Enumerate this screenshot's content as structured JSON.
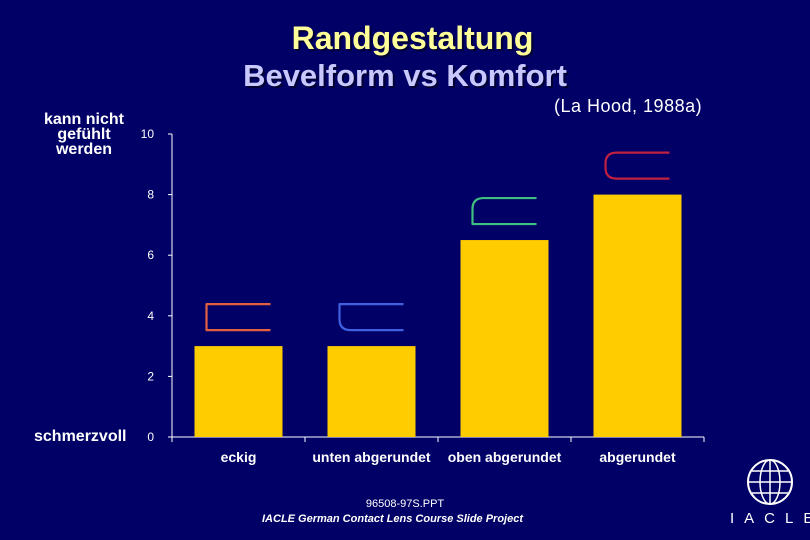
{
  "header": {
    "title": "Randgestaltung",
    "subtitle": "Bevelform vs Komfort",
    "citation": "(La Hood, 1988a)"
  },
  "side_labels": {
    "top": "kann nicht gefühlt werden",
    "bottom": "schmerzvoll"
  },
  "footer": {
    "file": "96508-97S.PPT",
    "project": "IACLE German Contact Lens Course Slide Project",
    "logo_text": "IACLE"
  },
  "colors": {
    "background": "#000066",
    "bar": "#FFCC00",
    "axis": "#FFFFFF",
    "title": "#FFFF99",
    "subtitle": "#C8C8FF"
  },
  "chart_data": {
    "type": "bar",
    "title": "Randgestaltung",
    "subtitle": "Bevelform vs Komfort",
    "categories": [
      "eckig",
      "unten abgerundet",
      "oben abgerundet",
      "abgerundet"
    ],
    "values": [
      3,
      3,
      6.5,
      8
    ],
    "ylim": [
      0,
      10
    ],
    "yticks": [
      0,
      2,
      4,
      6,
      8,
      10
    ],
    "grid": false,
    "xlabel": "",
    "ylabel": "",
    "edge_icons": [
      {
        "category": "eckig",
        "shape": "square-edge",
        "color": "#E06040"
      },
      {
        "category": "unten abgerundet",
        "shape": "bottom-rounded",
        "color": "#4060E0"
      },
      {
        "category": "oben abgerundet",
        "shape": "top-rounded",
        "color": "#40C080"
      },
      {
        "category": "abgerundet",
        "shape": "fully-rounded",
        "color": "#C02040"
      }
    ]
  }
}
